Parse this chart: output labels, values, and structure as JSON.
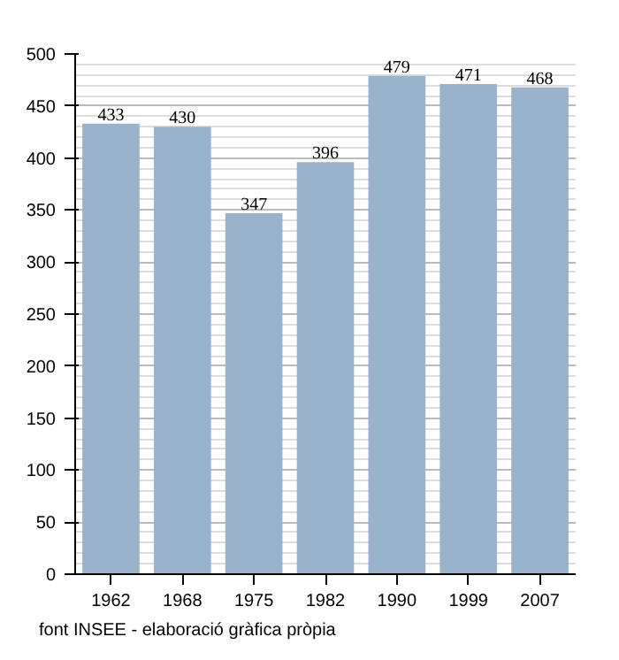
{
  "chart_data": {
    "type": "bar",
    "categories": [
      "1962",
      "1968",
      "1975",
      "1982",
      "1990",
      "1999",
      "2007"
    ],
    "values": [
      433,
      430,
      347,
      396,
      479,
      471,
      468
    ],
    "color": "#9ab3cc",
    "ylim": [
      0,
      500
    ],
    "yticks": [
      0,
      50,
      100,
      150,
      200,
      250,
      300,
      350,
      400,
      450,
      500
    ],
    "grid": "y",
    "data_labels": true,
    "annotations": [
      "font INSEE - elaboració gràfica pròpia"
    ]
  }
}
